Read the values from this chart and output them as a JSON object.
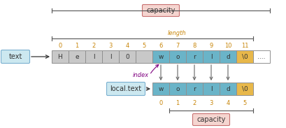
{
  "top_chars": [
    "H",
    "e",
    "l",
    "l",
    "0",
    " ",
    "w",
    "o",
    "r",
    "l",
    "d",
    "\\0",
    "...."
  ],
  "top_colors": [
    "#c8c8c8",
    "#c8c8c8",
    "#c8c8c8",
    "#c8c8c8",
    "#c8c8c8",
    "#c8c8c8",
    "#6ab4c8",
    "#6ab4c8",
    "#6ab4c8",
    "#6ab4c8",
    "#6ab4c8",
    "#e8b84a",
    "#ffffff"
  ],
  "bot_chars": [
    "w",
    "o",
    "r",
    "l",
    "d",
    "\\0"
  ],
  "bot_colors": [
    "#6ab4c8",
    "#6ab4c8",
    "#6ab4c8",
    "#6ab4c8",
    "#6ab4c8",
    "#e8b84a"
  ],
  "idx_color": "#c8860a",
  "len_color": "#c8860a",
  "cap_color": "#b06060",
  "cap_bg": "#f5d5d0",
  "cap_edge": "#c87070",
  "index_arrow_color": "#800080",
  "label_bg": "#cce8f0",
  "label_edge": "#7ab0d0",
  "arr_edge": "#909090",
  "down_arrow_color": "#666666"
}
